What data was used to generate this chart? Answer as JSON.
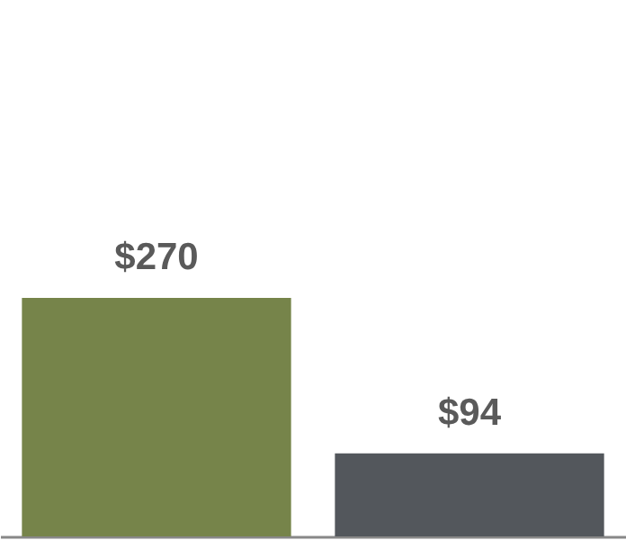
{
  "chart_data": {
    "type": "bar",
    "categories": [
      null,
      null
    ],
    "values": [
      270,
      94
    ],
    "colors": [
      "#76844a",
      "#53575c"
    ],
    "value_labels": [
      "$270",
      "$94"
    ],
    "tick_labels": false
  }
}
